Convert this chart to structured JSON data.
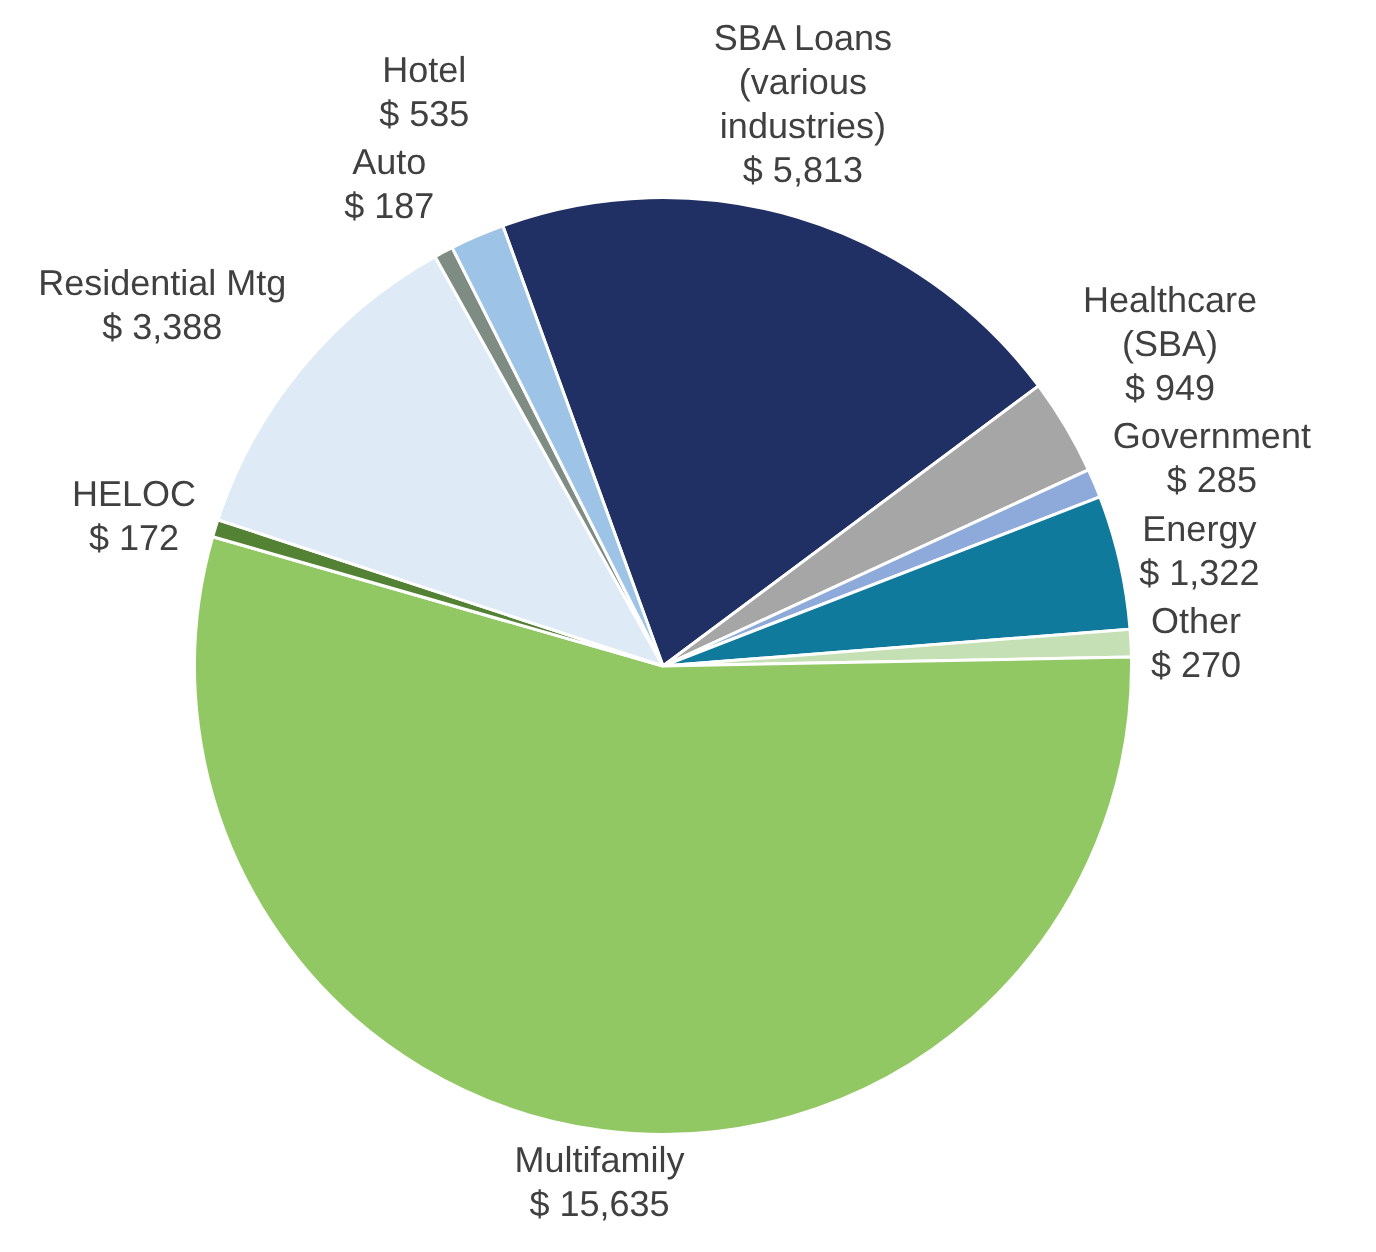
{
  "chart_data": {
    "type": "pie",
    "categories": [
      "SBA Loans (various industries)",
      "Healthcare (SBA)",
      "Government",
      "Energy",
      "Other",
      "Multifamily",
      "HELOC",
      "Residential Mtg",
      "Auto",
      "Hotel"
    ],
    "values": [
      5813,
      949,
      285,
      1322,
      270,
      15635,
      172,
      3388,
      187,
      535
    ],
    "value_labels": [
      "$ 5,813",
      "$ 949",
      "$ 285",
      "$ 1,322",
      "$ 270",
      "$ 15,635",
      "$ 172",
      "$ 3,388",
      "$ 187",
      "$ 535"
    ],
    "colors": [
      "#203064",
      "#a6a6a6",
      "#8eaadb",
      "#107a9c",
      "#c5e0b4",
      "#92c864",
      "#548235",
      "#deebf7",
      "#7f8c84",
      "#9dc3e6"
    ],
    "legend": false
  }
}
